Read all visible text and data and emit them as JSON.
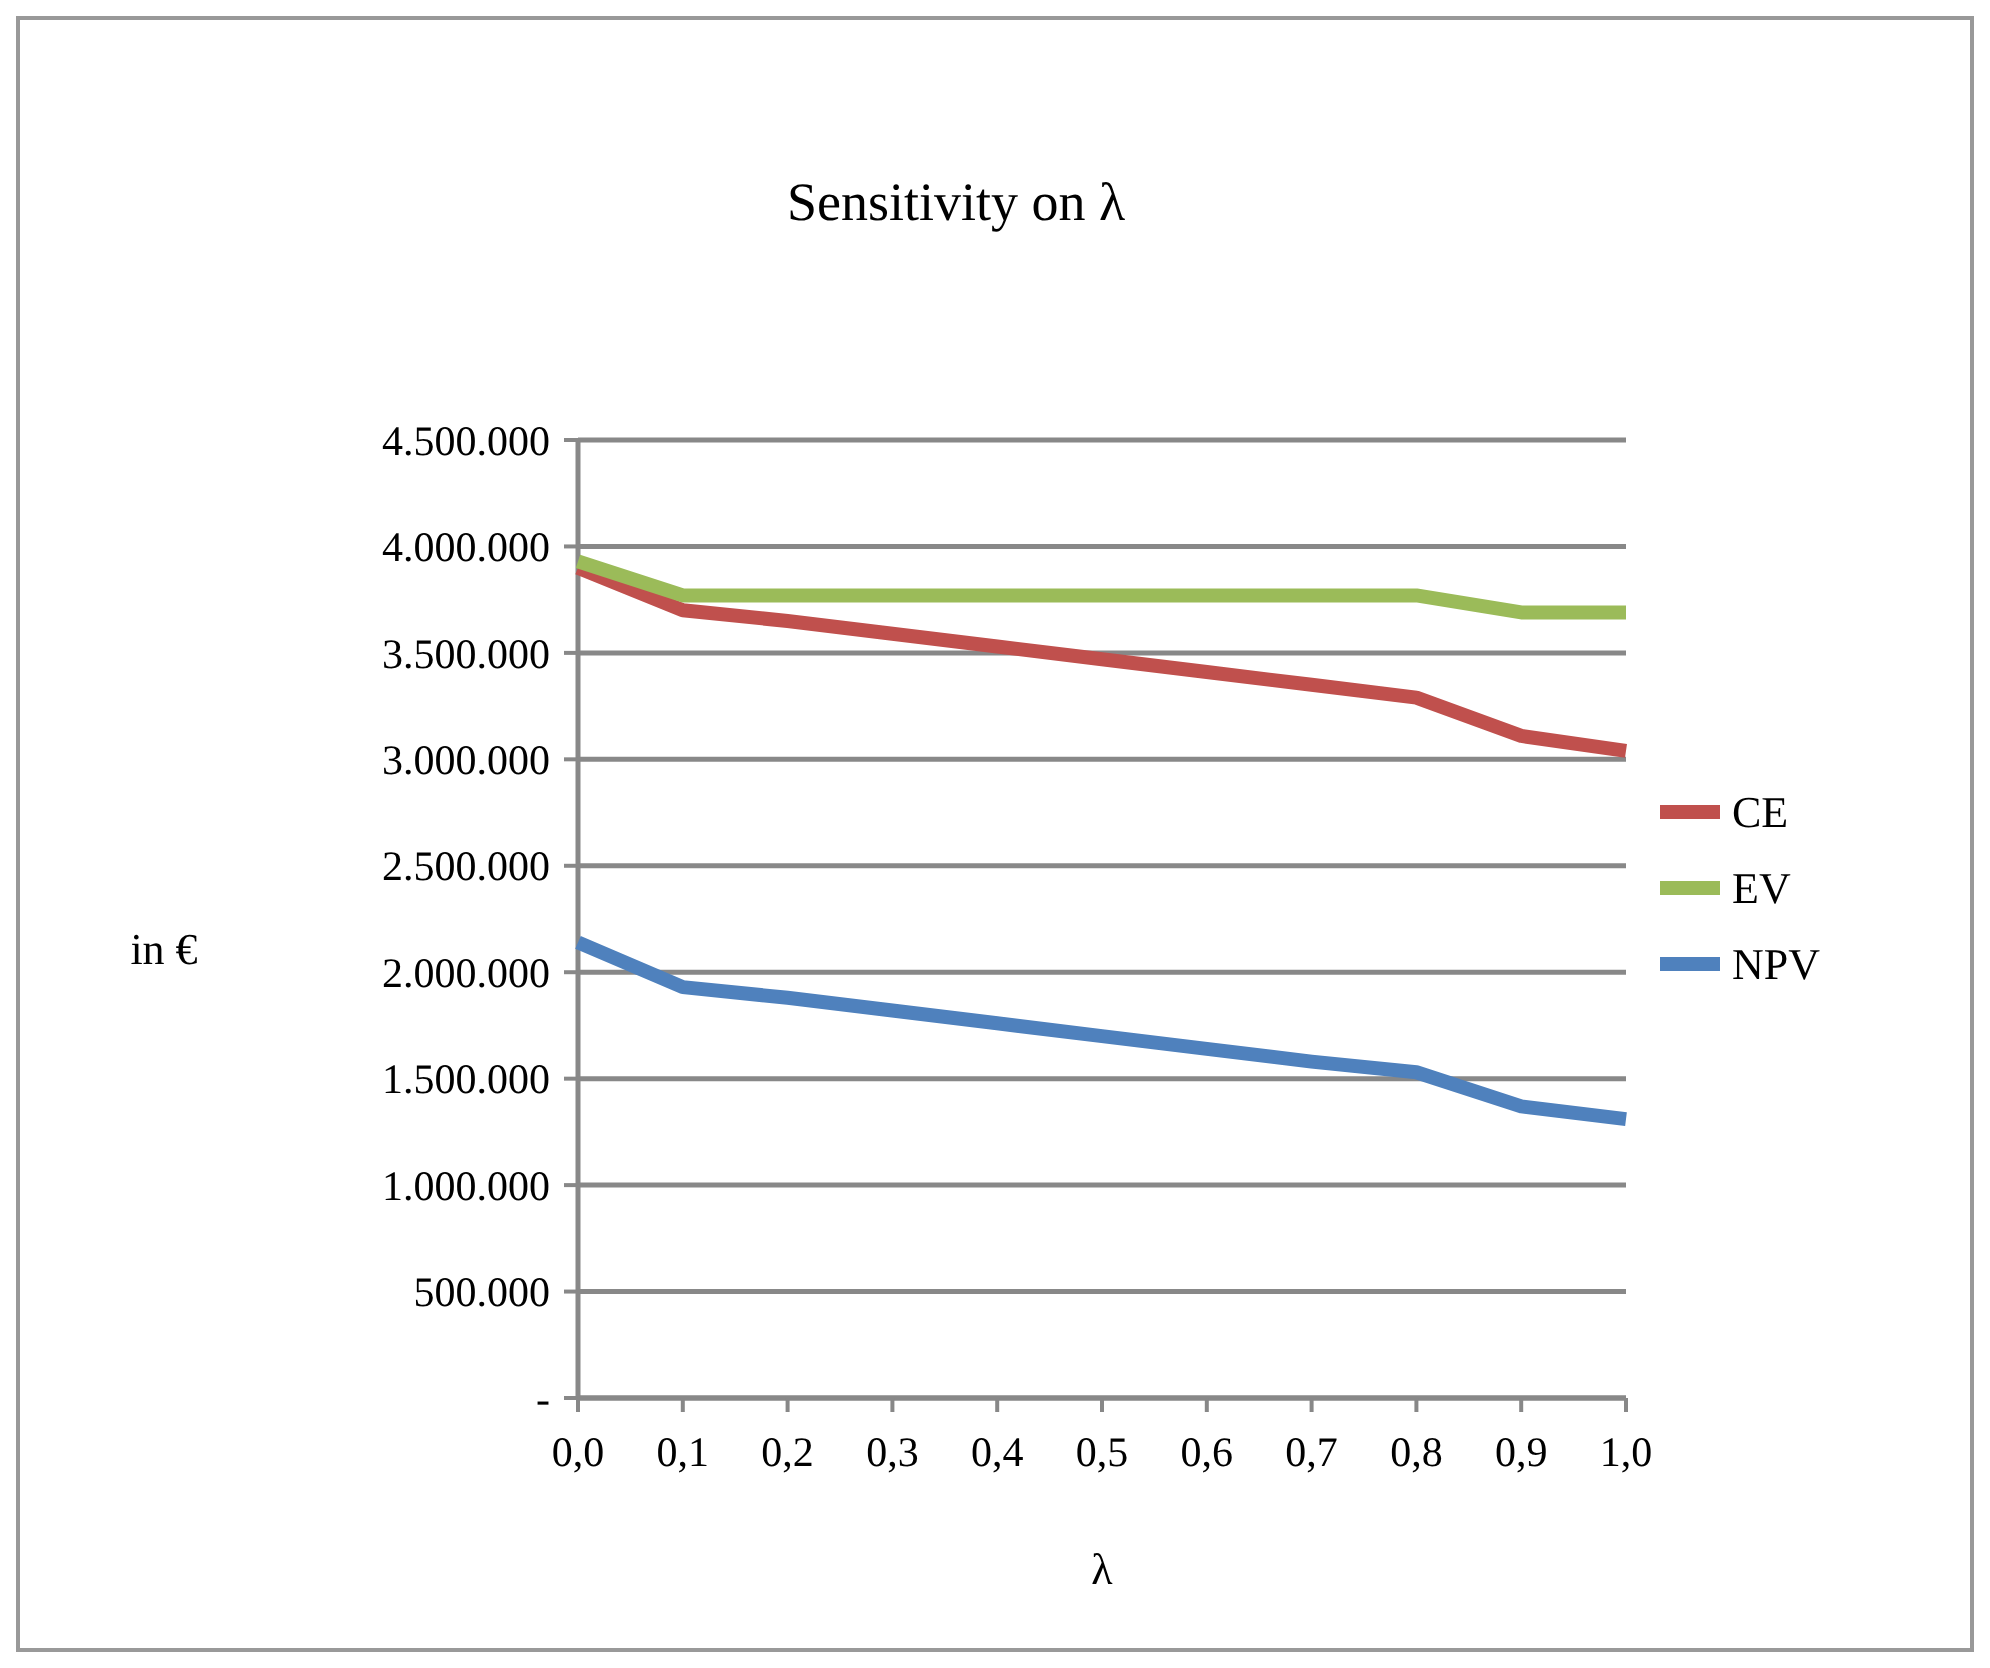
{
  "chart_data": {
    "type": "line",
    "title": "Sensitivity on λ",
    "xlabel": "λ",
    "ylabel": "in €",
    "x": [
      0,
      0.1,
      0.2,
      0.3,
      0.4,
      0.5,
      0.6,
      0.7,
      0.8,
      0.9,
      1.0
    ],
    "xlim": [
      0,
      1
    ],
    "xticks": [
      {
        "value": 0,
        "label": "0,0"
      },
      {
        "value": 0.1,
        "label": "0,1"
      },
      {
        "value": 0.2,
        "label": "0,2"
      },
      {
        "value": 0.3,
        "label": "0,3"
      },
      {
        "value": 0.4,
        "label": "0,4"
      },
      {
        "value": 0.5,
        "label": "0,5"
      },
      {
        "value": 0.6,
        "label": "0,6"
      },
      {
        "value": 0.7,
        "label": "0,7"
      },
      {
        "value": 0.8,
        "label": "0,8"
      },
      {
        "value": 0.9,
        "label": "0,9"
      },
      {
        "value": 1,
        "label": "1,0"
      }
    ],
    "ylim": [
      0,
      4500000
    ],
    "yticks": [
      {
        "value": 0,
        "label": "-"
      },
      {
        "value": 500000,
        "label": "500.000"
      },
      {
        "value": 1000000,
        "label": "1.000.000"
      },
      {
        "value": 1500000,
        "label": "1.500.000"
      },
      {
        "value": 2000000,
        "label": "2.000.000"
      },
      {
        "value": 2500000,
        "label": "2.500.000"
      },
      {
        "value": 3000000,
        "label": "3.000.000"
      },
      {
        "value": 3500000,
        "label": "3.500.000"
      },
      {
        "value": 4000000,
        "label": "4.000.000"
      },
      {
        "value": 4500000,
        "label": "4.500.000"
      }
    ],
    "grid": "y",
    "legend": "right",
    "marker": "none",
    "line_style": "solid",
    "series": [
      {
        "name": "CE",
        "color": "#c0504d",
        "values": [
          3900000,
          3700000,
          3650000,
          3590000,
          3530000,
          3470000,
          3410000,
          3350000,
          3290000,
          3110000,
          3040000
        ]
      },
      {
        "name": "EV",
        "color": "#9bbb59",
        "values": [
          3930000,
          3770000,
          3770000,
          3770000,
          3770000,
          3770000,
          3770000,
          3770000,
          3770000,
          3690000,
          3690000
        ]
      },
      {
        "name": "NPV",
        "color": "#4f81bd",
        "values": [
          2140000,
          1930000,
          1880000,
          1820000,
          1760000,
          1700000,
          1640000,
          1580000,
          1530000,
          1370000,
          1310000
        ]
      }
    ]
  }
}
